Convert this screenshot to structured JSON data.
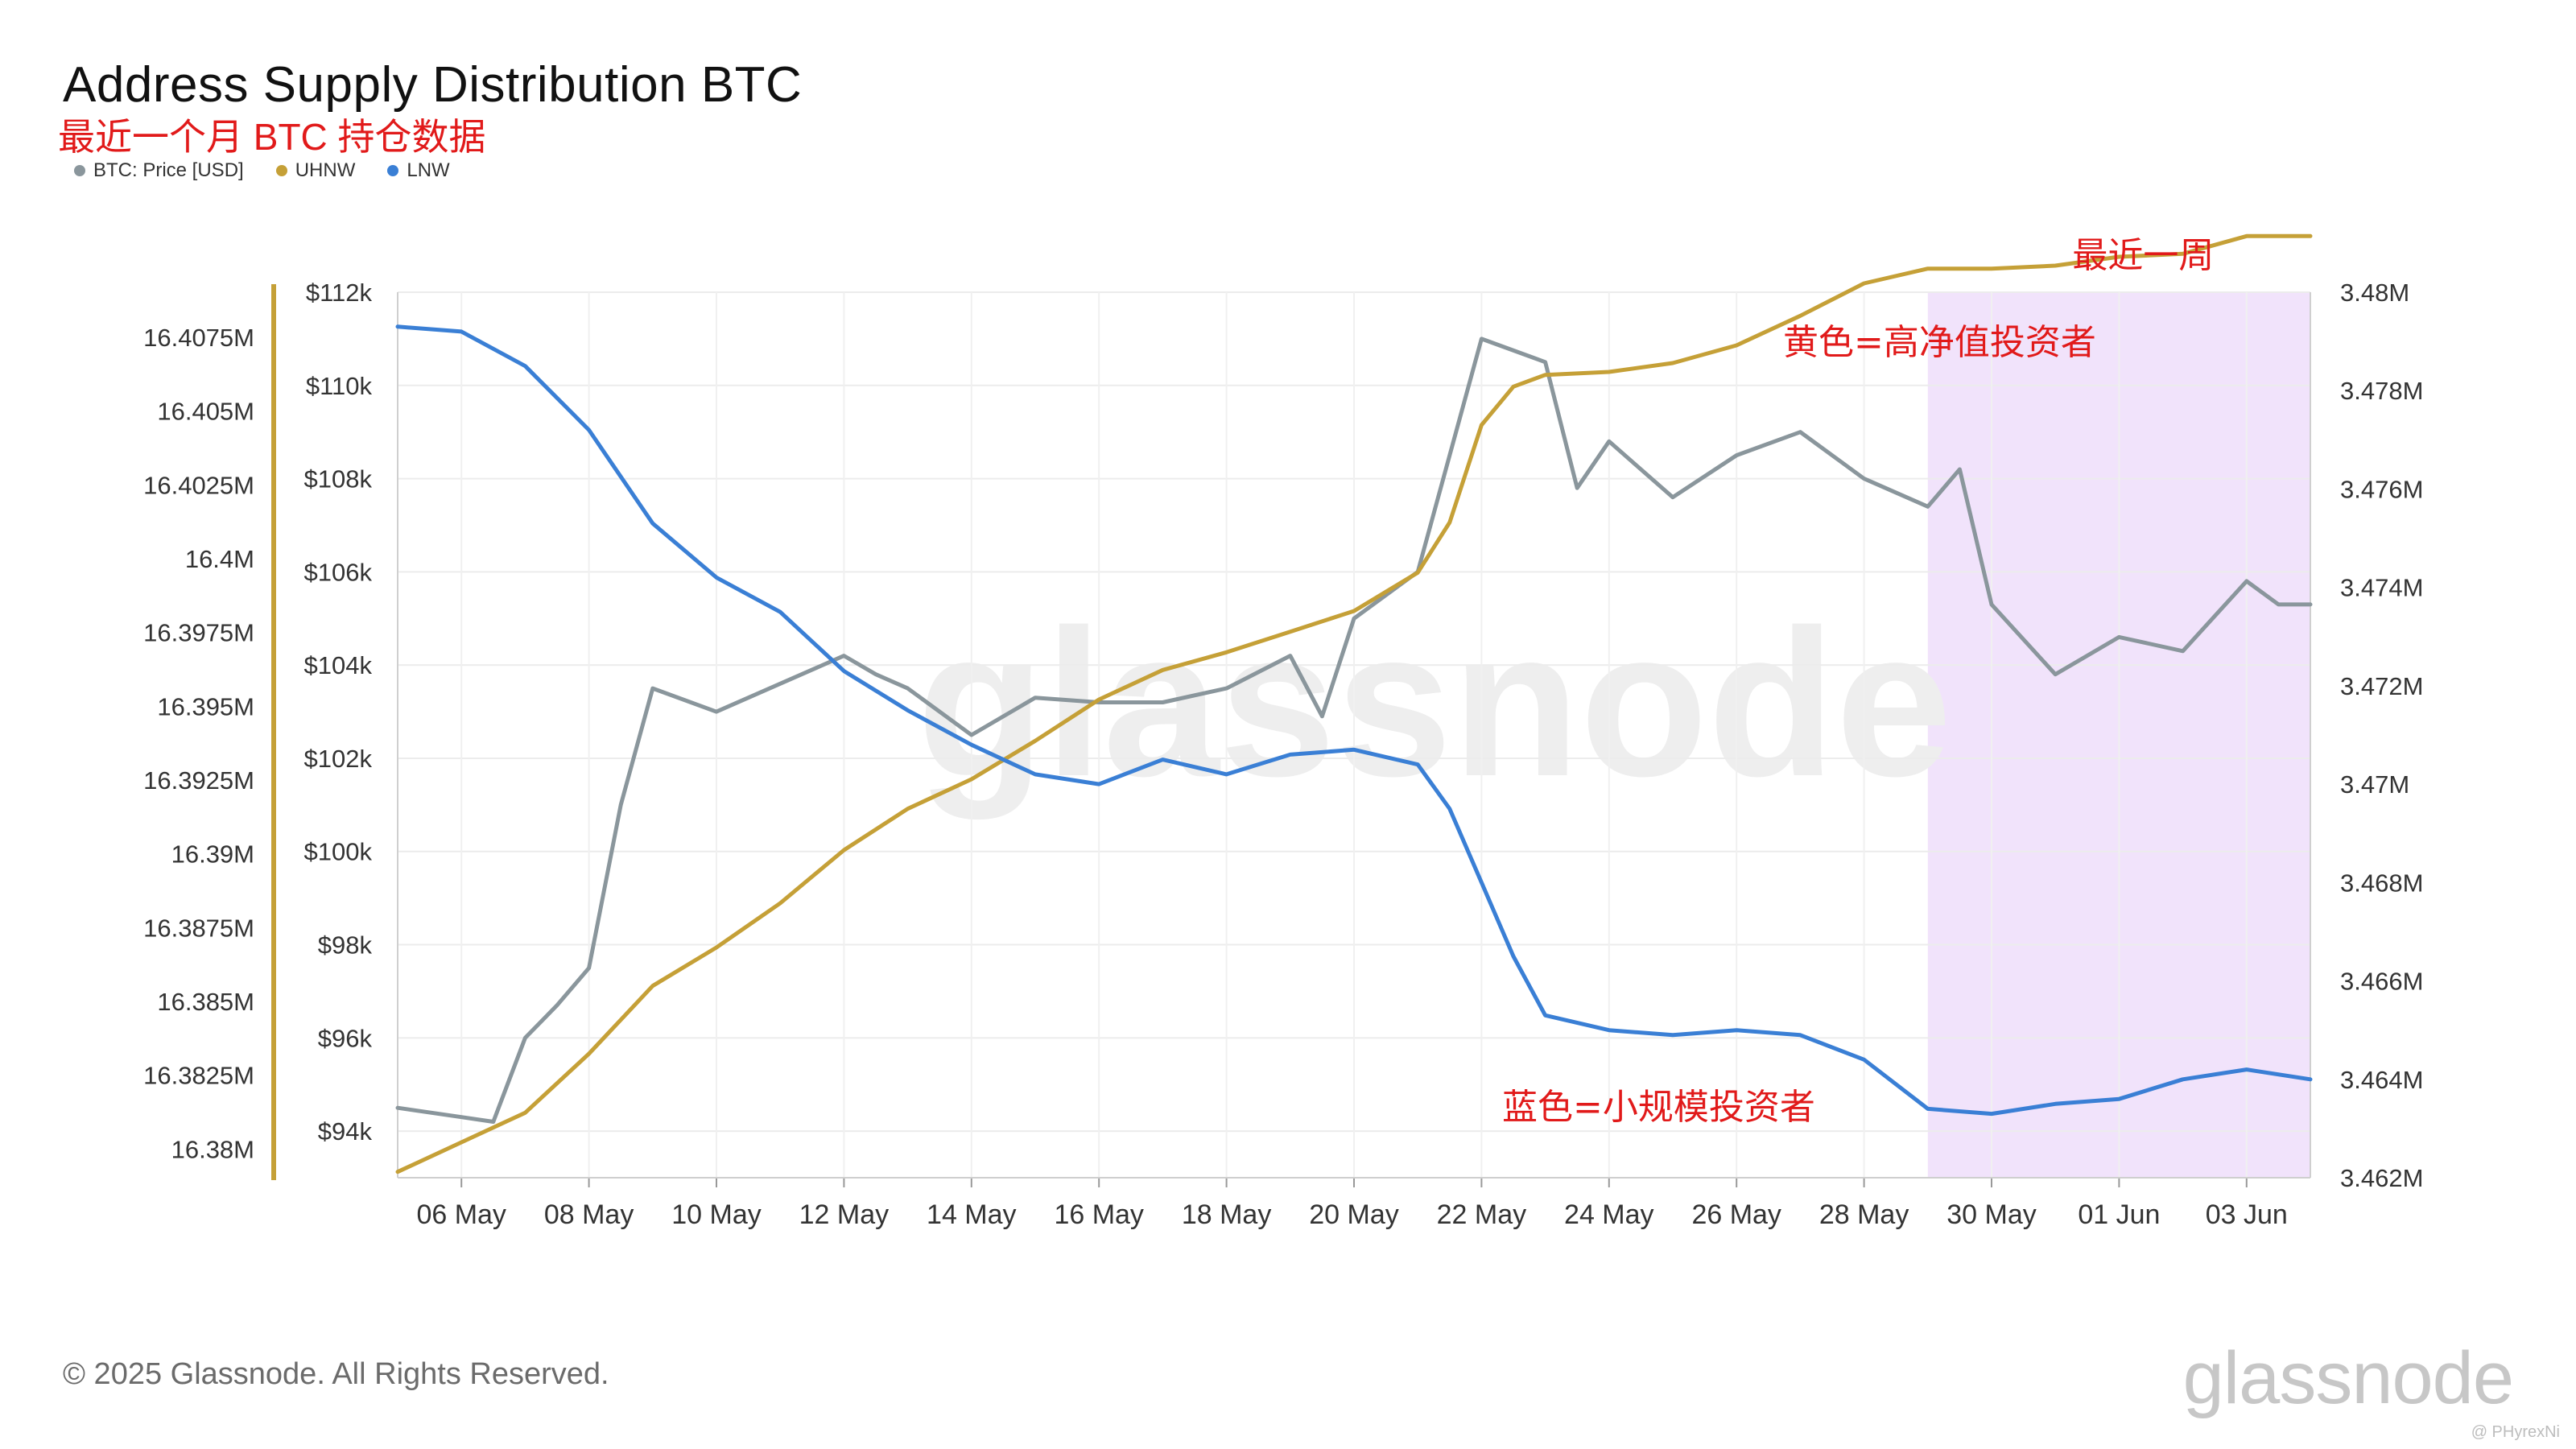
{
  "header": {
    "title": "Address Supply Distribution BTC",
    "subtitle": "最近一个月 BTC 持仓数据"
  },
  "legend": [
    {
      "label": "BTC: Price [USD]",
      "color": "#8a969c"
    },
    {
      "label": "UHNW",
      "color": "#c5a037"
    },
    {
      "label": "LNW",
      "color": "#3a7fd5"
    }
  ],
  "annotations": {
    "highlight_label": "最近一周",
    "uhnw_note": "黄色=高净值投资者",
    "lnw_note": "蓝色=小规模投资者"
  },
  "footer": {
    "copyright": "© 2025 Glassnode. All Rights Reserved.",
    "logo": "glassnode",
    "watermark": "glassnode",
    "corner_mark": "@ PHyrexNi"
  },
  "chart_data": {
    "type": "line",
    "x_range": [
      "2025-05-05",
      "2025-06-04"
    ],
    "x_ticks": [
      "06 May",
      "08 May",
      "10 May",
      "12 May",
      "14 May",
      "16 May",
      "18 May",
      "20 May",
      "22 May",
      "24 May",
      "26 May",
      "28 May",
      "30 May",
      "01 Jun",
      "03 Jun"
    ],
    "highlight_range": [
      "2025-05-29",
      "2025-06-04"
    ],
    "highlight_color": "#f1e3fb",
    "grid": true,
    "axes": {
      "left_outer": {
        "series": "UHNW",
        "range": [
          16.379,
          16.409
        ],
        "ticks": [
          "16.4075M",
          "16.405M",
          "16.4025M",
          "16.4M",
          "16.3975M",
          "16.395M",
          "16.3925M",
          "16.39M",
          "16.3875M",
          "16.385M",
          "16.3825M",
          "16.38M"
        ],
        "axis_color": "#c5a037"
      },
      "left_inner": {
        "series": "BTC: Price [USD]",
        "range": [
          93000,
          112000
        ],
        "ticks": [
          "$112k",
          "$110k",
          "$108k",
          "$106k",
          "$104k",
          "$102k",
          "$100k",
          "$98k",
          "$96k",
          "$94k"
        ]
      },
      "right": {
        "series": "LNW",
        "range": [
          3.462,
          3.48
        ],
        "ticks": [
          "3.48M",
          "3.478M",
          "3.476M",
          "3.474M",
          "3.472M",
          "3.47M",
          "3.468M",
          "3.466M",
          "3.464M",
          "3.462M"
        ]
      }
    },
    "series": [
      {
        "name": "BTC: Price [USD]",
        "color": "#8a969c",
        "axis": "left_inner",
        "x": [
          "2025-05-05",
          "2025-05-06",
          "2025-05-06 12:00",
          "2025-05-07",
          "2025-05-07 12:00",
          "2025-05-08",
          "2025-05-08 12:00",
          "2025-05-09",
          "2025-05-10",
          "2025-05-11",
          "2025-05-12",
          "2025-05-12 12:00",
          "2025-05-13",
          "2025-05-14",
          "2025-05-15",
          "2025-05-16",
          "2025-05-17",
          "2025-05-18",
          "2025-05-19",
          "2025-05-19 12:00",
          "2025-05-20",
          "2025-05-21",
          "2025-05-21 12:00",
          "2025-05-22",
          "2025-05-23",
          "2025-05-23 12:00",
          "2025-05-24",
          "2025-05-25",
          "2025-05-26",
          "2025-05-27",
          "2025-05-28",
          "2025-05-29",
          "2025-05-29 12:00",
          "2025-05-30",
          "2025-05-31",
          "2025-06-01",
          "2025-06-02",
          "2025-06-03",
          "2025-06-03 12:00",
          "2025-06-04"
        ],
        "values": [
          94500,
          94300,
          94200,
          96000,
          96700,
          97500,
          101000,
          103500,
          103000,
          103600,
          104200,
          103800,
          103500,
          102500,
          103300,
          103200,
          103200,
          103500,
          104200,
          102900,
          105000,
          106000,
          108500,
          111000,
          110500,
          107800,
          108800,
          107600,
          108500,
          109000,
          108000,
          107400,
          108200,
          105300,
          103800,
          104600,
          104300,
          105800,
          105300,
          105300
        ]
      },
      {
        "name": "UHNW",
        "color": "#c5a037",
        "axis": "left_outer",
        "x": [
          "2025-05-05",
          "2025-05-06",
          "2025-05-07",
          "2025-05-08",
          "2025-05-09",
          "2025-05-10",
          "2025-05-11",
          "2025-05-12",
          "2025-05-13",
          "2025-05-14",
          "2025-05-15",
          "2025-05-16",
          "2025-05-17",
          "2025-05-18",
          "2025-05-19",
          "2025-05-20",
          "2025-05-21",
          "2025-05-21 12:00",
          "2025-05-22",
          "2025-05-22 12:00",
          "2025-05-23",
          "2025-05-24",
          "2025-05-25",
          "2025-05-26",
          "2025-05-27",
          "2025-05-28",
          "2025-05-29",
          "2025-05-30",
          "2025-05-31",
          "2025-06-01",
          "2025-06-02",
          "2025-06-03",
          "2025-06-04"
        ],
        "values": [
          16.3792,
          16.3802,
          16.3812,
          16.3832,
          16.3855,
          16.3868,
          16.3883,
          16.3901,
          16.3915,
          16.3925,
          16.3938,
          16.3952,
          16.3962,
          16.3968,
          16.3975,
          16.3982,
          16.3995,
          16.4012,
          16.4045,
          16.4058,
          16.4062,
          16.4063,
          16.4066,
          16.4072,
          16.4082,
          16.4093,
          16.4098,
          16.4098,
          16.4099,
          16.4102,
          16.4103,
          16.4109,
          16.4109
        ]
      },
      {
        "name": "LNW",
        "color": "#3a7fd5",
        "axis": "right",
        "x": [
          "2025-05-05",
          "2025-05-06",
          "2025-05-07",
          "2025-05-08",
          "2025-05-09",
          "2025-05-10",
          "2025-05-11",
          "2025-05-12",
          "2025-05-13",
          "2025-05-14",
          "2025-05-15",
          "2025-05-16",
          "2025-05-17",
          "2025-05-18",
          "2025-05-19",
          "2025-05-20",
          "2025-05-21",
          "2025-05-21 12:00",
          "2025-05-22",
          "2025-05-22 12:00",
          "2025-05-23",
          "2025-05-24",
          "2025-05-25",
          "2025-05-26",
          "2025-05-27",
          "2025-05-28",
          "2025-05-29",
          "2025-05-30",
          "2025-05-31",
          "2025-06-01",
          "2025-06-02",
          "2025-06-03",
          "2025-06-04"
        ],
        "values": [
          3.4793,
          3.4792,
          3.4785,
          3.4772,
          3.4753,
          3.4742,
          3.4735,
          3.4723,
          3.4715,
          3.4708,
          3.4702,
          3.47,
          3.4705,
          3.4702,
          3.4706,
          3.4707,
          3.4704,
          3.4695,
          3.468,
          3.4665,
          3.4653,
          3.465,
          3.4649,
          3.465,
          3.4649,
          3.4644,
          3.4634,
          3.4633,
          3.4635,
          3.4636,
          3.464,
          3.4642,
          3.464
        ]
      }
    ]
  }
}
